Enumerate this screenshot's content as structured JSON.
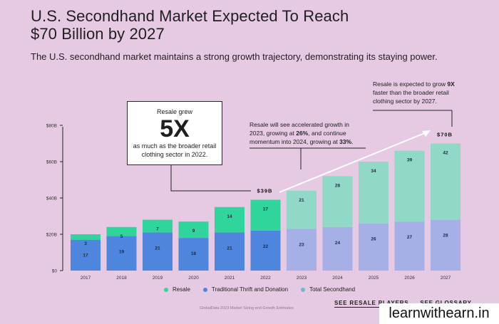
{
  "header": {
    "title_line1": "U.S. Secondhand Market Expected To Reach",
    "title_line2": "$70 Billion by 2027",
    "subtitle": "The U.S. secondhand market maintains a strong growth trajectory, demonstrating its staying power."
  },
  "callout": {
    "pre": "Resale grew",
    "big": "5X",
    "post": "as much as the broader retail clothing sector in 2022."
  },
  "notes": {
    "growth_1": "Resale will see accelerated growth in",
    "growth_2a": "2023, growing at ",
    "growth_2b": "26%",
    "growth_2c": ", and continue",
    "growth_3a": "momentum into 2024, growing at ",
    "growth_3b": "33%",
    "growth_3c": ".",
    "faster_1a": "Resale is expected to grow ",
    "faster_1b": "9X",
    "faster_2": "faster than the broader retail",
    "faster_3": "clothing sector by 2027."
  },
  "legend": {
    "resale": "Resale",
    "thrift": "Traditional Thrift and Donation",
    "total": "Total Secondhand"
  },
  "links": {
    "players": "SEE RESALE PLAYERS",
    "glossary": "SEE GLOSSARY"
  },
  "source": "GlobalData 2023 Market Sizing and Growth Estimates",
  "watermark": "learnwithearn.in",
  "colors": {
    "resale": "#2fd59a",
    "thrift": "#4f86dd",
    "resale_projected": "#8fd9c6",
    "thrift_projected": "#a6b0e6",
    "background": "#e6c9e3"
  },
  "chart_data": {
    "type": "bar",
    "stacked": true,
    "categories": [
      "2017",
      "2018",
      "2019",
      "2020",
      "2021",
      "2022",
      "2023",
      "2024",
      "2025",
      "2026",
      "2027"
    ],
    "series": [
      {
        "name": "Traditional Thrift and Donation",
        "values": [
          17,
          19,
          21,
          18,
          21,
          22,
          23,
          24,
          26,
          27,
          28
        ]
      },
      {
        "name": "Resale",
        "values": [
          3,
          5,
          7,
          9,
          14,
          17,
          21,
          28,
          34,
          39,
          42
        ]
      }
    ],
    "projected_from": "2023",
    "total_labels": {
      "2022": "$39B",
      "2027": "$70B"
    },
    "y_ticks": [
      "$0",
      "$20B",
      "$40B",
      "$60B",
      "$80B"
    ],
    "ylim": [
      0,
      80
    ],
    "legend_placement": "bottom"
  }
}
